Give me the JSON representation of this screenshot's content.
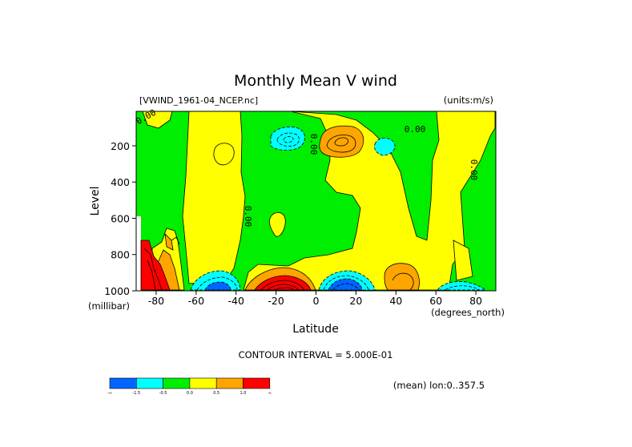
{
  "chart_data": {
    "type": "contour",
    "title": "Monthly Mean V wind",
    "dataset_label": "[VWIND_1961-04_NCEP.nc]",
    "units_label": "(units:m/s)",
    "xlabel": "Latitude",
    "x_units": "(degrees_north)",
    "ylabel": "Level",
    "y_units": "(millibar)",
    "x_ticks": [
      "-80",
      "-60",
      "-40",
      "-20",
      "0",
      "20",
      "40",
      "60",
      "80"
    ],
    "x_tick_values": [
      -80,
      -60,
      -40,
      -20,
      0,
      20,
      40,
      60,
      80
    ],
    "y_ticks": [
      "200",
      "400",
      "600",
      "800",
      "1000"
    ],
    "y_tick_values": [
      200,
      400,
      600,
      800,
      1000
    ],
    "xlim": [
      -90,
      90
    ],
    "ylim": [
      1000,
      10
    ],
    "contour_interval_text": "CONTOUR INTERVAL = 5.000E-01",
    "mean_note": "(mean) lon:0..357.5",
    "contour_labels": [
      "0.00",
      "0.00",
      "0.00",
      "0.00",
      "0.00"
    ],
    "colorbar": {
      "colors": [
        "#0066ff",
        "#00ffff",
        "#00ee00",
        "#ffff00",
        "#ffa500",
        "#ff0000"
      ],
      "labels": [
        "-∞",
        "-1.5",
        "-0.5",
        "0.0",
        "0.5",
        "1.0",
        "∞"
      ]
    },
    "features": [
      {
        "sign": "positive",
        "lat": -13,
        "level": 980,
        "max_class": "> 1.0"
      },
      {
        "sign": "positive",
        "lat": -85,
        "level": 950,
        "max_class": "> 1.0"
      },
      {
        "sign": "negative",
        "lat": 12,
        "level": 970,
        "min_class": "< -1.5"
      },
      {
        "sign": "negative",
        "lat": -50,
        "level": 970,
        "min_class": "< -1.5"
      },
      {
        "sign": "positive",
        "lat": 12,
        "level": 170,
        "max_class": "0.5 to 1.0"
      },
      {
        "sign": "negative",
        "lat": -16,
        "level": 170,
        "min_class": "-1.5 to -0.5"
      },
      {
        "sign": "negative",
        "lat": 33,
        "level": 190,
        "min_class": "-1.5 to -0.5"
      },
      {
        "sign": "negative",
        "lat": 68,
        "level": 980,
        "min_class": "-1.5 to -0.5"
      },
      {
        "sign": "positive",
        "lat": 42,
        "level": 940,
        "max_class": "0.5 to 1.0"
      }
    ]
  }
}
